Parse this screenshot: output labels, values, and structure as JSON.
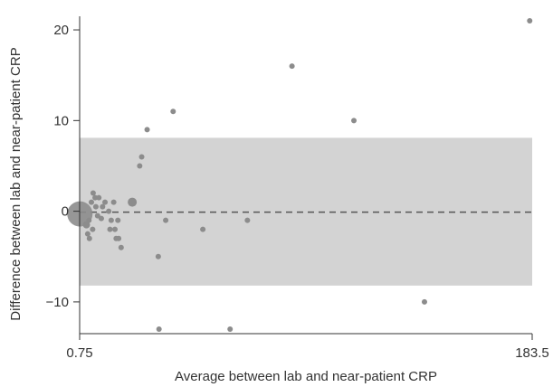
{
  "chart_data": {
    "type": "scatter",
    "title": "",
    "xlabel": "Average between lab and near-patient CRP",
    "ylabel": "Difference between lab and near-patient CRP",
    "xlim": [
      0.75,
      183.5
    ],
    "ylim": [
      -13.5,
      21.5
    ],
    "x_ticks": [
      {
        "value": 0.75,
        "label": "0.75"
      },
      {
        "value": 183.5,
        "label": "183.5"
      }
    ],
    "y_ticks": [
      {
        "value": 20,
        "label": "20"
      },
      {
        "value": 10,
        "label": "10"
      },
      {
        "value": 0,
        "label": "0"
      },
      {
        "value": -10,
        "label": "−10"
      }
    ],
    "limits_of_agreement": {
      "lower": -8.2,
      "upper": 8.1
    },
    "mean_difference": -0.1,
    "grid": false,
    "colors": {
      "band": "#d3d3d3",
      "point": "#8c8c8c",
      "dashed_line": "#555555",
      "text": "#333333"
    },
    "points": [
      {
        "x": 0.85,
        "y": -0.3,
        "size": 14
      },
      {
        "x": 3.5,
        "y": -1.5,
        "size": 4
      },
      {
        "x": 4.0,
        "y": -2.5,
        "size": 3
      },
      {
        "x": 4.5,
        "y": -1.0,
        "size": 3
      },
      {
        "x": 4.7,
        "y": -3.0,
        "size": 3
      },
      {
        "x": 5.5,
        "y": 1.0,
        "size": 3
      },
      {
        "x": 6.0,
        "y": -2.0,
        "size": 3
      },
      {
        "x": 6.2,
        "y": 2.0,
        "size": 3
      },
      {
        "x": 7.0,
        "y": 1.5,
        "size": 3
      },
      {
        "x": 7.3,
        "y": 0.5,
        "size": 3
      },
      {
        "x": 8.0,
        "y": -0.5,
        "size": 3
      },
      {
        "x": 8.5,
        "y": 1.5,
        "size": 3
      },
      {
        "x": 9.5,
        "y": -0.8,
        "size": 3
      },
      {
        "x": 10.0,
        "y": 0.5,
        "size": 3
      },
      {
        "x": 11.0,
        "y": 1.0,
        "size": 3
      },
      {
        "x": 12.5,
        "y": 0.0,
        "size": 3
      },
      {
        "x": 13.0,
        "y": -2.0,
        "size": 3
      },
      {
        "x": 13.5,
        "y": -1.0,
        "size": 3
      },
      {
        "x": 14.5,
        "y": 1.0,
        "size": 3
      },
      {
        "x": 15.0,
        "y": -2.0,
        "size": 3
      },
      {
        "x": 15.5,
        "y": -3.0,
        "size": 3
      },
      {
        "x": 16.5,
        "y": -3.0,
        "size": 3
      },
      {
        "x": 17.5,
        "y": -4.0,
        "size": 3
      },
      {
        "x": 16.2,
        "y": -1.0,
        "size": 3
      },
      {
        "x": 22.0,
        "y": 1.0,
        "size": 5
      },
      {
        "x": 25.0,
        "y": 5.0,
        "size": 3
      },
      {
        "x": 25.8,
        "y": 6.0,
        "size": 3
      },
      {
        "x": 28.0,
        "y": 9.0,
        "size": 3
      },
      {
        "x": 32.5,
        "y": -5.0,
        "size": 3
      },
      {
        "x": 32.8,
        "y": -13.0,
        "size": 3
      },
      {
        "x": 35.5,
        "y": -1.0,
        "size": 3
      },
      {
        "x": 38.5,
        "y": 11.0,
        "size": 3
      },
      {
        "x": 50.5,
        "y": -2.0,
        "size": 3
      },
      {
        "x": 61.5,
        "y": -13.0,
        "size": 3
      },
      {
        "x": 68.5,
        "y": -1.0,
        "size": 3
      },
      {
        "x": 86.5,
        "y": 16.0,
        "size": 3
      },
      {
        "x": 111.5,
        "y": 10.0,
        "size": 3
      },
      {
        "x": 140.0,
        "y": -10.0,
        "size": 3
      },
      {
        "x": 182.5,
        "y": 21.0,
        "size": 3
      }
    ]
  }
}
